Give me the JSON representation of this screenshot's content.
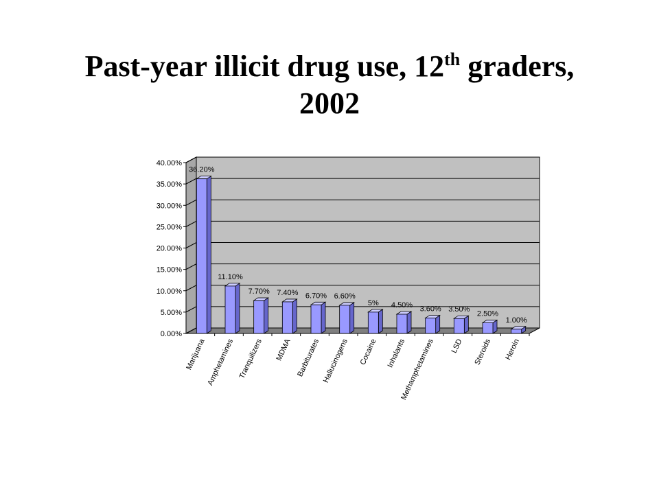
{
  "slide": {
    "title_main": "Past-year illicit drug use, 12",
    "title_sup": "th",
    "title_rest": " graders,",
    "title_line2": "2002"
  },
  "chart_data": {
    "type": "bar",
    "categories": [
      "Marijuana",
      "Amphetamines",
      "Tranquilizers",
      "MDMA",
      "Barbiturates",
      "Hallucinogens",
      "Cocaine",
      "Inhalants",
      "Methamphetamines",
      "LSD",
      "Steroids",
      "Heroin"
    ],
    "values": [
      36.2,
      11.1,
      7.7,
      7.4,
      6.7,
      6.6,
      5.0,
      4.5,
      3.6,
      3.5,
      2.5,
      1.0
    ],
    "data_labels": [
      "36.20%",
      "11.10%",
      "7.70%",
      "7.40%",
      "6.70%",
      "6.60%",
      "5%",
      "4.50%",
      "3.60%",
      "3.50%",
      "2.50%",
      "1.00%"
    ],
    "y_ticks": [
      0,
      5,
      10,
      15,
      20,
      25,
      30,
      35,
      40
    ],
    "y_tick_labels": [
      "0.00%",
      "5.00%",
      "10.00%",
      "15.00%",
      "20.00%",
      "25.00%",
      "30.00%",
      "35.00%",
      "40.00%"
    ],
    "ylim": [
      0,
      40
    ],
    "grid": true,
    "style_3d": true,
    "colors": {
      "bar_front": "#9999ff",
      "bar_side": "#6666cc",
      "bar_top": "#ccccff",
      "plot_wall": "#c0c0c0",
      "plot_floor": "#808080"
    }
  }
}
